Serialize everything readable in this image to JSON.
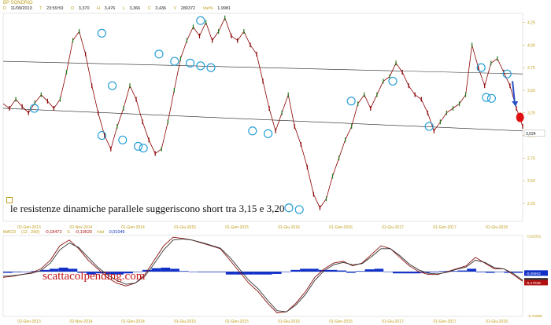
{
  "header": {
    "title": "BP SONDRIO",
    "ohlc": [
      {
        "k": "D",
        "v": "11/09/2013"
      },
      {
        "k": "T",
        "v": "23:59:59"
      },
      {
        "k": "O",
        "v": "3,370"
      },
      {
        "k": "H",
        "v": "3,476"
      },
      {
        "k": "L",
        "v": "3,366"
      },
      {
        "k": "C",
        "v": "3,436"
      },
      {
        "k": "V",
        "v": "280372"
      },
      {
        "k": "Var%",
        "v": "1,9981"
      }
    ]
  },
  "annotation": "le resistenze dinamiche parallele suggeriscono short tra 3,15 e 3,20",
  "watermark": "scattacolpending.com",
  "macd_header": {
    "label": "MACD",
    "params": "(12 , 200)",
    "macd": "-0,18472",
    "signal_k": "S",
    "signal": "-0,19520",
    "hist_k": "hist",
    "hist": "0,01049"
  },
  "colors": {
    "price": "#8b0000",
    "price_up": "#1e7a1e",
    "channel": "#222222",
    "circle": "#2aa0d8",
    "arrow": "#2a50c8",
    "marker": "#e01010",
    "macd": "#8b1010",
    "histogram": "#1030c8",
    "axis_text": "#c0a020"
  },
  "chart_data": [
    {
      "type": "line",
      "title": "",
      "xlabel": "",
      "ylabel": "",
      "y_ticks": [
        "4,25",
        "4,00",
        "3,75",
        "3,50",
        "3,25",
        "3,00",
        "2,75",
        "2,50",
        "2,25"
      ],
      "ylim": [
        2.05,
        4.35
      ],
      "x_ticks": [
        "02-Gen-2013",
        "02-Nov-2014",
        "01-Gen-2014",
        "01-Giu-2015",
        "01-Gen-2015",
        "01-Giu-2016",
        "01-Gen-2016",
        "01-Giu-2017",
        "01-Gen-2017",
        "01-Giu-2018"
      ],
      "last_price_label": "3,024",
      "price_path": [
        3.35,
        3.3,
        3.4,
        3.32,
        3.25,
        3.36,
        3.45,
        3.38,
        3.3,
        3.4,
        3.7,
        4.05,
        4.15,
        3.9,
        3.55,
        3.25,
        3.0,
        2.85,
        3.1,
        3.3,
        3.55,
        3.4,
        3.15,
        2.95,
        2.8,
        2.85,
        3.15,
        3.5,
        3.85,
        4.05,
        4.2,
        4.1,
        4.25,
        4.05,
        4.15,
        4.3,
        4.1,
        4.05,
        4.15,
        4.0,
        3.9,
        3.6,
        3.3,
        3.05,
        3.25,
        3.45,
        3.1,
        2.9,
        2.65,
        2.35,
        2.2,
        2.3,
        2.55,
        2.75,
        2.95,
        3.1,
        3.35,
        3.45,
        3.3,
        3.45,
        3.6,
        3.65,
        3.8,
        3.7,
        3.55,
        3.45,
        3.4,
        3.25,
        3.05,
        3.15,
        3.25,
        3.3,
        3.35,
        3.45,
        4.0,
        3.75,
        3.55,
        3.8,
        3.85,
        3.7,
        3.55,
        3.3,
        3.1
      ],
      "channel_lines": [
        {
          "x0": 0.0,
          "y0": 3.82,
          "x1": 1.0,
          "y1": 3.68
        },
        {
          "x0": 0.0,
          "y0": 3.3,
          "x1": 1.0,
          "y1": 3.05
        }
      ],
      "touch_points": [
        {
          "x": 0.06,
          "y": 3.3
        },
        {
          "x": 0.19,
          "y": 4.13
        },
        {
          "x": 0.19,
          "y": 3.0
        },
        {
          "x": 0.23,
          "y": 2.95
        },
        {
          "x": 0.21,
          "y": 3.55
        },
        {
          "x": 0.26,
          "y": 2.88
        },
        {
          "x": 0.27,
          "y": 2.86
        },
        {
          "x": 0.3,
          "y": 3.9
        },
        {
          "x": 0.33,
          "y": 3.82
        },
        {
          "x": 0.36,
          "y": 3.8
        },
        {
          "x": 0.38,
          "y": 4.27
        },
        {
          "x": 0.38,
          "y": 3.77
        },
        {
          "x": 0.4,
          "y": 3.75
        },
        {
          "x": 0.48,
          "y": 3.05
        },
        {
          "x": 0.51,
          "y": 3.02
        },
        {
          "x": 0.55,
          "y": 2.2
        },
        {
          "x": 0.57,
          "y": 2.18
        },
        {
          "x": 0.67,
          "y": 3.38
        },
        {
          "x": 0.75,
          "y": 3.6
        },
        {
          "x": 0.82,
          "y": 3.1
        },
        {
          "x": 0.92,
          "y": 3.75
        },
        {
          "x": 0.93,
          "y": 3.42
        },
        {
          "x": 0.94,
          "y": 3.41
        },
        {
          "x": 0.97,
          "y": 3.68
        }
      ]
    },
    {
      "type": "line",
      "title": "",
      "xlabel": "",
      "ylabel": "",
      "y_labels": [
        "0,62051",
        "-0,05902",
        "-0,16552",
        "-0,17046",
        "-0,76588"
      ],
      "ylim": [
        -0.78,
        0.63
      ],
      "x_ticks": [
        "02-Gen-2013",
        "02-Nov-2014",
        "01-Gen-2014",
        "01-Giu-2015",
        "01-Gen-2015",
        "01-Giu-2016",
        "01-Gen-2016",
        "01-Giu-2017",
        "01-Gen-2017",
        "01-Giu-2018"
      ],
      "series": [
        {
          "values": [
            -0.1,
            -0.08,
            -0.05,
            -0.02,
            0.05,
            0.2,
            0.45,
            0.55,
            0.4,
            0.2,
            0.05,
            -0.1,
            -0.2,
            -0.25,
            -0.2,
            -0.05,
            0.2,
            0.45,
            0.6,
            0.58,
            0.55,
            0.5,
            0.45,
            0.4,
            0.2,
            0.0,
            -0.2,
            -0.35,
            -0.55,
            -0.72,
            -0.7,
            -0.55,
            -0.35,
            -0.1,
            0.05,
            0.15,
            0.18,
            0.1,
            0.15,
            0.3,
            0.45,
            0.4,
            0.25,
            0.1,
            0.0,
            -0.05,
            -0.05,
            0.0,
            0.05,
            0.1,
            0.25,
            0.15,
            0.05,
            0.05,
            -0.05,
            -0.17
          ]
        },
        {
          "values": [
            -0.08,
            -0.07,
            -0.05,
            -0.03,
            0.02,
            0.15,
            0.38,
            0.5,
            0.42,
            0.25,
            0.08,
            -0.05,
            -0.15,
            -0.22,
            -0.2,
            -0.08,
            0.14,
            0.38,
            0.55,
            0.57,
            0.55,
            0.51,
            0.46,
            0.41,
            0.25,
            0.05,
            -0.15,
            -0.3,
            -0.5,
            -0.68,
            -0.7,
            -0.58,
            -0.4,
            -0.15,
            0.02,
            0.12,
            0.16,
            0.12,
            0.14,
            0.26,
            0.4,
            0.4,
            0.28,
            0.13,
            0.03,
            -0.03,
            -0.04,
            -0.01,
            0.04,
            0.08,
            0.2,
            0.16,
            0.07,
            0.05,
            -0.03,
            -0.15
          ]
        }
      ],
      "histogram": [
        -0.02,
        -0.01,
        0.0,
        0.01,
        0.03,
        0.05,
        0.07,
        0.05,
        -0.02,
        -0.05,
        -0.03,
        -0.05,
        -0.05,
        -0.03,
        0.0,
        0.03,
        0.06,
        0.07,
        0.05,
        0.01,
        0.0,
        -0.01,
        -0.01,
        -0.01,
        -0.05,
        -0.05,
        -0.05,
        -0.05,
        -0.05,
        -0.04,
        0.0,
        0.03,
        0.05,
        0.05,
        0.03,
        0.03,
        0.02,
        -0.02,
        0.01,
        0.04,
        0.05,
        0.0,
        -0.03,
        -0.03,
        -0.03,
        -0.02,
        -0.01,
        0.01,
        0.01,
        0.02,
        0.05,
        -0.01,
        -0.02,
        0.0,
        -0.02,
        -0.02
      ]
    }
  ]
}
